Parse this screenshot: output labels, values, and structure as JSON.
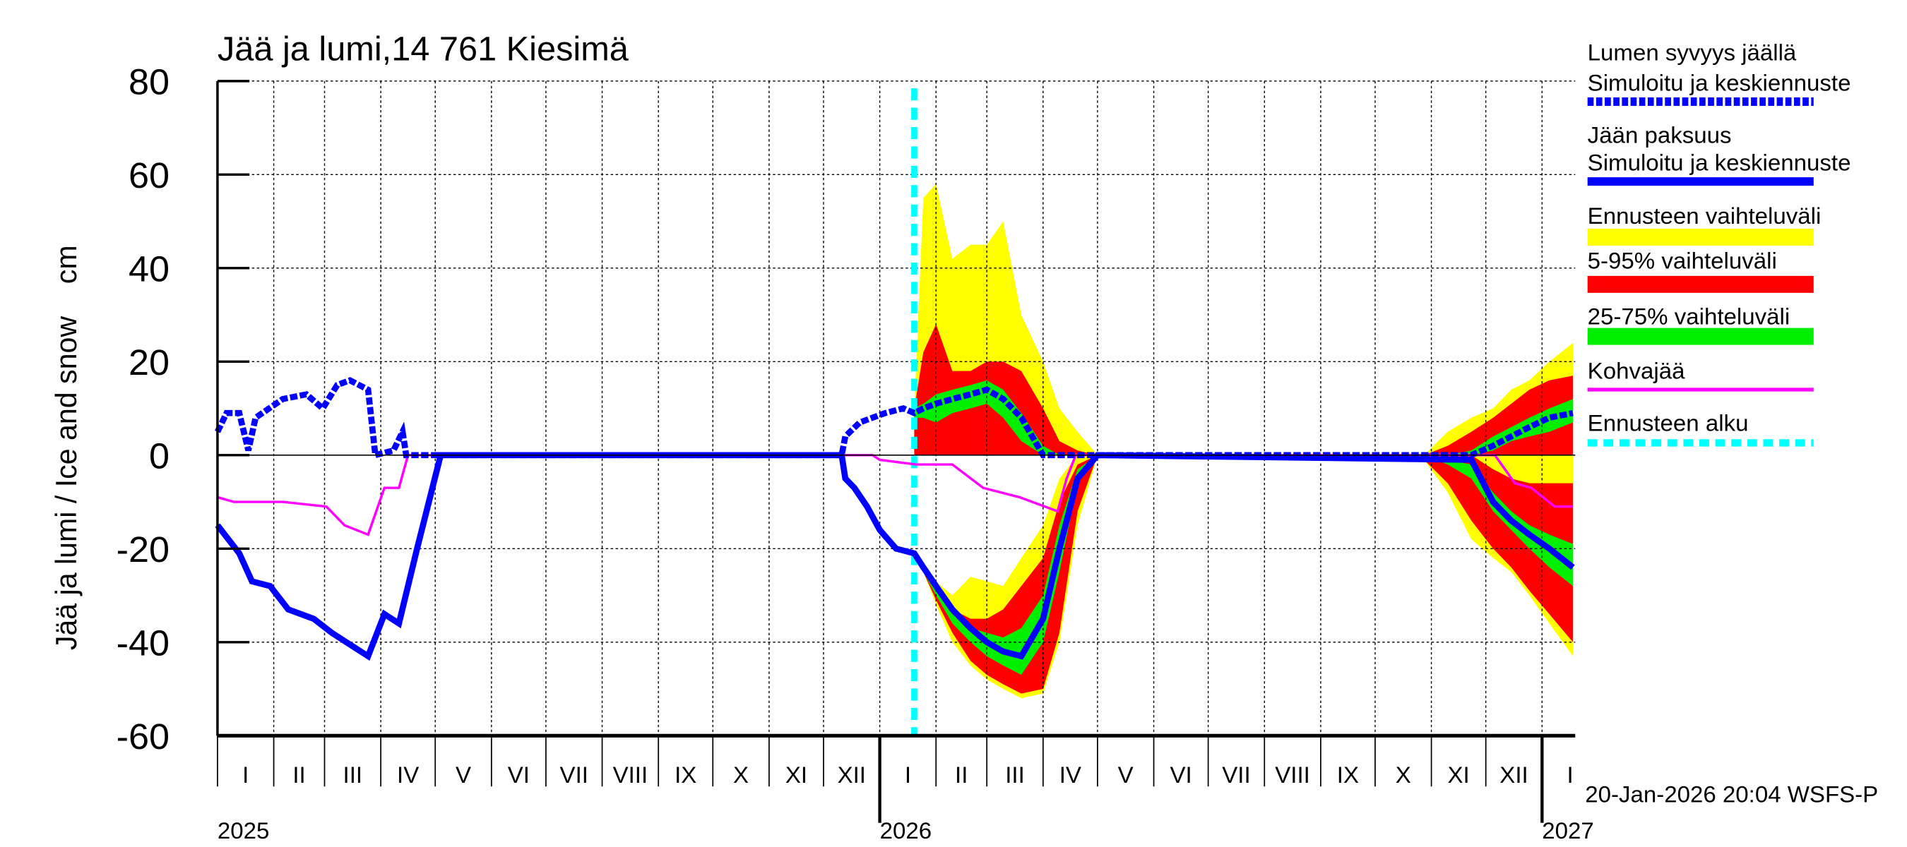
{
  "chart_data": {
    "type": "area",
    "title": "Jää ja lumi,14 761 Kiesimä",
    "ylabel": "Jää ja lumi / Ice and snow    cm",
    "ylim": [
      -60,
      80
    ],
    "yticks": [
      80,
      60,
      40,
      20,
      0,
      -20,
      -40,
      -60
    ],
    "xlim": [
      "2025-01-01",
      "2027-01-18"
    ],
    "grid": true,
    "month_labels": [
      "I",
      "II",
      "III",
      "IV",
      "V",
      "VI",
      "VII",
      "VIII",
      "IX",
      "X",
      "XI",
      "XII"
    ],
    "year_labels": [
      "2025",
      "2026",
      "2027"
    ],
    "forecast_start": "2026-01-20",
    "timestamp": "20-Jan-2026 20:04 WSFS-P",
    "colors": {
      "snow": "#0000ff",
      "ice": "#0000ff",
      "range": "#ffff00",
      "p5_95": "#ff0000",
      "p25_75": "#00ee00",
      "kohva": "#ff00ff",
      "forecast_start": "#00ffff"
    },
    "legend": {
      "placement": "right",
      "items": [
        {
          "key": "snow",
          "lines": [
            "Lumen syvyys jäällä",
            "Simuloitu ja keskiennuste"
          ],
          "style": "dashed",
          "color": "#0000ff"
        },
        {
          "key": "ice",
          "lines": [
            "Jään paksuus",
            "Simuloitu ja keskiennuste"
          ],
          "style": "solid",
          "color": "#0000ff"
        },
        {
          "key": "range",
          "lines": [
            "Ennusteen vaihteluväli"
          ],
          "style": "band",
          "color": "#ffff00"
        },
        {
          "key": "p5_95",
          "lines": [
            "5-95% vaihteluväli"
          ],
          "style": "band",
          "color": "#ff0000"
        },
        {
          "key": "p25_75",
          "lines": [
            "25-75% vaihteluväli"
          ],
          "style": "band",
          "color": "#00ee00"
        },
        {
          "key": "kohva",
          "lines": [
            "Kohvajää"
          ],
          "style": "thin",
          "color": "#ff00ff"
        },
        {
          "key": "forecast_start",
          "lines": [
            "Ennusteen alku"
          ],
          "style": "dotted",
          "color": "#00ffff"
        }
      ]
    },
    "series": {
      "snow": [
        [
          "2025-01-01",
          5
        ],
        [
          "2025-01-06",
          9
        ],
        [
          "2025-01-13",
          9
        ],
        [
          "2025-01-18",
          1
        ],
        [
          "2025-01-22",
          8
        ],
        [
          "2025-02-06",
          12
        ],
        [
          "2025-02-19",
          13
        ],
        [
          "2025-02-28",
          10
        ],
        [
          "2025-03-08",
          15
        ],
        [
          "2025-03-15",
          16
        ],
        [
          "2025-03-25",
          14
        ],
        [
          "2025-03-29",
          0
        ],
        [
          "2025-04-08",
          1
        ],
        [
          "2025-04-13",
          5
        ],
        [
          "2025-04-15",
          0
        ],
        [
          "2025-12-11",
          0
        ],
        [
          "2025-12-13",
          4
        ],
        [
          "2025-12-21",
          7
        ],
        [
          "2026-01-04",
          9
        ],
        [
          "2026-01-14",
          10
        ],
        [
          "2026-01-20",
          9
        ],
        [
          "2026-01-25",
          10
        ],
        [
          "2026-02-01",
          11
        ],
        [
          "2026-02-10",
          12
        ],
        [
          "2026-02-20",
          13
        ],
        [
          "2026-03-01",
          14
        ],
        [
          "2026-03-10",
          12
        ],
        [
          "2026-03-20",
          8
        ],
        [
          "2026-04-01",
          0
        ],
        [
          "2026-10-28",
          0
        ],
        [
          "2026-11-23",
          0
        ],
        [
          "2026-12-05",
          2
        ],
        [
          "2026-12-15",
          4
        ],
        [
          "2026-12-25",
          6
        ],
        [
          "2027-01-05",
          8
        ],
        [
          "2027-01-18",
          9
        ]
      ],
      "ice": [
        [
          "2025-01-01",
          -15
        ],
        [
          "2025-01-13",
          -21
        ],
        [
          "2025-01-20",
          -27
        ],
        [
          "2025-01-30",
          -28
        ],
        [
          "2025-02-09",
          -33
        ],
        [
          "2025-02-23",
          -35
        ],
        [
          "2025-03-05",
          -38
        ],
        [
          "2025-03-25",
          -43
        ],
        [
          "2025-04-03",
          -34
        ],
        [
          "2025-04-11",
          -36
        ],
        [
          "2025-04-21",
          -20
        ],
        [
          "2025-05-04",
          0
        ],
        [
          "2025-12-11",
          0
        ],
        [
          "2025-12-13",
          -5
        ],
        [
          "2025-12-18",
          -7
        ],
        [
          "2025-12-25",
          -11
        ],
        [
          "2026-01-01",
          -16
        ],
        [
          "2026-01-10",
          -20
        ],
        [
          "2026-01-20",
          -21
        ],
        [
          "2026-01-25",
          -24
        ],
        [
          "2026-02-01",
          -28
        ],
        [
          "2026-02-10",
          -33
        ],
        [
          "2026-02-20",
          -37
        ],
        [
          "2026-03-01",
          -40
        ],
        [
          "2026-03-10",
          -42
        ],
        [
          "2026-03-20",
          -43
        ],
        [
          "2026-04-01",
          -35
        ],
        [
          "2026-04-10",
          -20
        ],
        [
          "2026-04-20",
          -5
        ],
        [
          "2026-05-01",
          0
        ],
        [
          "2026-11-23",
          -1
        ],
        [
          "2026-12-05",
          -10
        ],
        [
          "2026-12-15",
          -14
        ],
        [
          "2026-12-25",
          -17
        ],
        [
          "2027-01-05",
          -20
        ],
        [
          "2027-01-18",
          -24
        ]
      ],
      "kohva": [
        [
          "2025-01-01",
          -9
        ],
        [
          "2025-01-10",
          -10
        ],
        [
          "2025-02-06",
          -10
        ],
        [
          "2025-03-02",
          -11
        ],
        [
          "2025-03-12",
          -15
        ],
        [
          "2025-03-25",
          -17
        ],
        [
          "2025-04-03",
          -7
        ],
        [
          "2025-04-11",
          -7
        ],
        [
          "2025-04-16",
          0
        ],
        [
          "2025-12-28",
          0
        ],
        [
          "2026-01-01",
          -1
        ],
        [
          "2026-01-21",
          -2
        ],
        [
          "2026-02-10",
          -2
        ],
        [
          "2026-02-27",
          -7
        ],
        [
          "2026-03-19",
          -9
        ],
        [
          "2026-04-09",
          -12
        ],
        [
          "2026-04-14",
          -5
        ],
        [
          "2026-04-19",
          0
        ],
        [
          "2026-12-06",
          0
        ],
        [
          "2026-12-17",
          -6
        ],
        [
          "2026-12-26",
          -7
        ],
        [
          "2027-01-08",
          -11
        ],
        [
          "2027-01-18",
          -11
        ]
      ]
    },
    "bands": [
      {
        "key": "range",
        "dates": [
          "2026-01-20",
          "2026-01-25",
          "2026-02-01",
          "2026-02-10",
          "2026-02-20",
          "2026-03-01",
          "2026-03-10",
          "2026-03-20",
          "2026-04-01",
          "2026-04-10",
          "2026-04-20",
          "2026-05-01"
        ],
        "snow_lo": [
          0,
          0,
          0,
          0,
          0,
          0,
          0,
          0,
          0,
          0,
          0,
          0
        ],
        "snow_hi": [
          10,
          55,
          58,
          42,
          45,
          45,
          50,
          30,
          20,
          10,
          5,
          0
        ],
        "ice_hi": [
          -21,
          -24,
          -27,
          -30,
          -26,
          -27,
          -28,
          -22,
          -15,
          -5,
          0,
          0
        ],
        "ice_lo": [
          -21,
          -25,
          -32,
          -40,
          -45,
          -48,
          -50,
          -52,
          -51,
          -40,
          -15,
          0
        ]
      },
      {
        "key": "p5_95",
        "dates": [
          "2026-01-20",
          "2026-01-25",
          "2026-02-01",
          "2026-02-10",
          "2026-02-20",
          "2026-03-01",
          "2026-03-10",
          "2026-03-20",
          "2026-04-01",
          "2026-04-10",
          "2026-04-20",
          "2026-05-01"
        ],
        "snow_lo": [
          0,
          0,
          0,
          0,
          0,
          0,
          0,
          0,
          0,
          0,
          0,
          0
        ],
        "snow_hi": [
          10,
          22,
          28,
          18,
          18,
          20,
          20,
          18,
          10,
          3,
          1,
          0
        ],
        "ice_hi": [
          -21,
          -24,
          -28,
          -33,
          -35,
          -35,
          -33,
          -28,
          -22,
          -10,
          -2,
          0
        ],
        "ice_lo": [
          -21,
          -25,
          -31,
          -38,
          -44,
          -47,
          -49,
          -51,
          -50,
          -38,
          -12,
          0
        ]
      },
      {
        "key": "p25_75",
        "dates": [
          "2026-01-20",
          "2026-01-25",
          "2026-02-01",
          "2026-02-10",
          "2026-02-20",
          "2026-03-01",
          "2026-03-10",
          "2026-03-20",
          "2026-04-01",
          "2026-04-10",
          "2026-04-20",
          "2026-05-01"
        ],
        "snow_lo": [
          8,
          8,
          7,
          9,
          10,
          11,
          8,
          3,
          0,
          0,
          0,
          0
        ],
        "snow_hi": [
          10,
          11,
          13,
          14,
          15,
          16,
          14,
          9,
          2,
          0,
          0,
          0
        ],
        "ice_hi": [
          -21,
          -24,
          -28,
          -34,
          -37,
          -38,
          -39,
          -37,
          -30,
          -15,
          -3,
          0
        ],
        "ice_lo": [
          -21,
          -25,
          -30,
          -36,
          -40,
          -43,
          -45,
          -47,
          -40,
          -25,
          -6,
          0
        ]
      },
      {
        "key": "range",
        "dates": [
          "2026-10-28",
          "2026-11-10",
          "2026-11-23",
          "2026-12-05",
          "2026-12-15",
          "2026-12-25",
          "2027-01-05",
          "2027-01-18"
        ],
        "snow_lo": [
          0,
          0,
          0,
          0,
          0,
          0,
          0,
          0
        ],
        "snow_hi": [
          0,
          5,
          8,
          10,
          14,
          16,
          20,
          24
        ],
        "ice_hi": [
          0,
          0,
          0,
          0,
          0,
          0,
          0,
          0
        ],
        "ice_lo": [
          -1,
          -8,
          -18,
          -22,
          -25,
          -30,
          -36,
          -43
        ]
      },
      {
        "key": "p5_95",
        "dates": [
          "2026-10-28",
          "2026-11-10",
          "2026-11-23",
          "2026-12-05",
          "2026-12-15",
          "2026-12-25",
          "2027-01-05",
          "2027-01-18"
        ],
        "snow_lo": [
          0,
          0,
          0,
          0,
          0,
          0,
          0,
          0
        ],
        "snow_hi": [
          0,
          2,
          5,
          8,
          11,
          14,
          16,
          17
        ],
        "ice_hi": [
          0,
          0,
          0,
          -3,
          -5,
          -6,
          -6,
          -6
        ],
        "ice_lo": [
          -1,
          -6,
          -14,
          -20,
          -24,
          -29,
          -34,
          -40
        ]
      },
      {
        "key": "p25_75",
        "dates": [
          "2026-10-28",
          "2026-11-10",
          "2026-11-23",
          "2026-12-05",
          "2026-12-15",
          "2026-12-25",
          "2027-01-05",
          "2027-01-18"
        ],
        "snow_lo": [
          0,
          0,
          0,
          1,
          3,
          4,
          5,
          7
        ],
        "snow_hi": [
          0,
          0,
          1,
          4,
          6,
          8,
          10,
          12
        ],
        "ice_hi": [
          0,
          -1,
          -2,
          -8,
          -12,
          -15,
          -17,
          -19
        ],
        "ice_lo": [
          0,
          -2,
          -5,
          -12,
          -16,
          -20,
          -24,
          -28
        ]
      }
    ]
  }
}
